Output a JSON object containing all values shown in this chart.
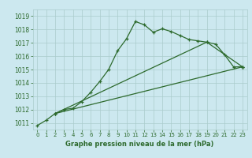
{
  "bg_color": "#cce8ef",
  "grid_color": "#aacccc",
  "line_color": "#2d6a2d",
  "title": "Graphe pression niveau de la mer (hPa)",
  "xlim": [
    -0.5,
    23.5
  ],
  "ylim": [
    1010.5,
    1019.5
  ],
  "yticks": [
    1011,
    1012,
    1013,
    1014,
    1015,
    1016,
    1017,
    1018,
    1019
  ],
  "xticks": [
    0,
    1,
    2,
    3,
    4,
    5,
    6,
    7,
    8,
    9,
    10,
    11,
    12,
    13,
    14,
    15,
    16,
    17,
    18,
    19,
    20,
    21,
    22,
    23
  ],
  "series1": {
    "x": [
      0,
      1,
      2,
      3,
      4,
      5,
      6,
      7,
      8,
      9,
      10,
      11,
      12,
      13,
      14,
      15,
      16,
      17,
      18,
      19,
      20,
      21,
      22,
      23
    ],
    "y": [
      1010.8,
      1011.2,
      1011.7,
      1012.0,
      1012.1,
      1012.6,
      1013.3,
      1014.1,
      1015.0,
      1016.4,
      1017.3,
      1018.6,
      1018.35,
      1017.8,
      1018.05,
      1017.85,
      1017.55,
      1017.25,
      1017.15,
      1017.05,
      1016.9,
      1016.1,
      1015.2,
      1015.2
    ]
  },
  "series2": {
    "x": [
      2,
      23
    ],
    "y": [
      1011.7,
      1015.2
    ]
  },
  "series3": {
    "x": [
      2,
      19,
      23
    ],
    "y": [
      1011.7,
      1017.05,
      1015.2
    ]
  }
}
